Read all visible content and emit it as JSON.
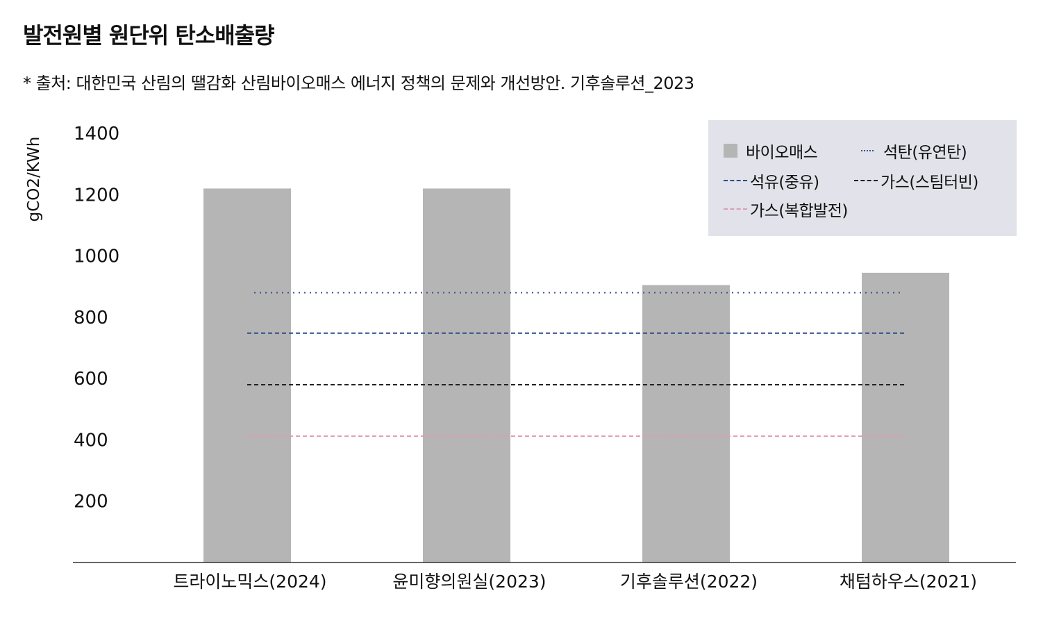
{
  "title": "발전원별 원단위 탄소배출량",
  "subtitle": "* 출처: 대한민국 산림의 땔감화 산림바이오매스 에너지 정책의 문제와 개선방안. 기후솔루션_2023",
  "chart_data": {
    "type": "bar",
    "ylabel": "gCO2/KWh",
    "ylim": [
      0,
      1400
    ],
    "yticks": [
      "200",
      "400",
      "600",
      "800",
      "1000",
      "1200",
      "1400"
    ],
    "grid": false,
    "legend_position": "top-right",
    "categories": [
      "트라이노믹스(2024)",
      "윤미향의원실(2023)",
      "기후솔루션(2022)",
      "채텀하우스(2021)"
    ],
    "series": [
      {
        "name": "바이오매스",
        "type": "bar",
        "color": "#b5b5b5",
        "values": [
          1220,
          1220,
          905,
          945
        ]
      }
    ],
    "reference_lines": [
      {
        "name": "석탄(유연탄)",
        "value": 880,
        "style": "dotted",
        "color": "#3a4f8e"
      },
      {
        "name": "석유(중유)",
        "value": 748,
        "style": "dashed",
        "color": "#2e4a8c"
      },
      {
        "name": "가스(스팀터빈)",
        "value": 580,
        "style": "dashed",
        "color": "#222222"
      },
      {
        "name": "가스(복합발전)",
        "value": 412,
        "style": "dashed",
        "color": "#e29ab6"
      }
    ]
  }
}
